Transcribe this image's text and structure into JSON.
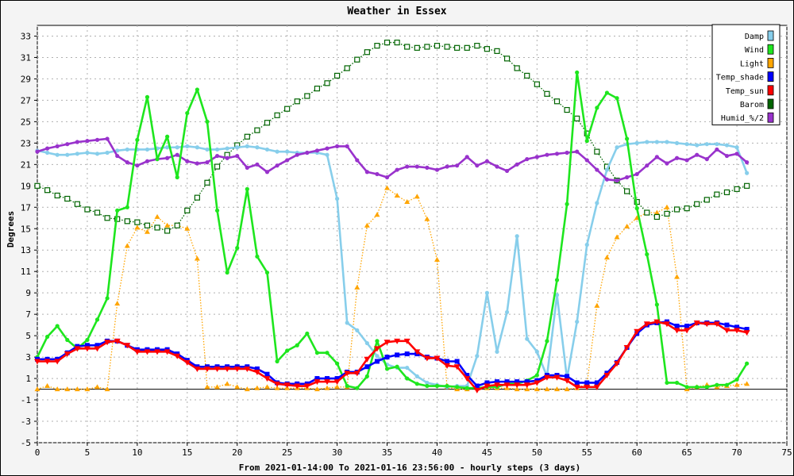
{
  "chart_data": {
    "type": "line",
    "title": "Weather in Essex",
    "xlabel": "From 2021-01-14:00 To 2021-01-16 23:56:00 - hourly steps (3 days)",
    "ylabel": "Degrees",
    "xlim": [
      0,
      75
    ],
    "ylim": [
      -5,
      34
    ],
    "xticks": [
      0,
      5,
      10,
      15,
      20,
      25,
      30,
      35,
      40,
      45,
      50,
      55,
      60,
      65,
      70,
      75
    ],
    "yticks": [
      -5,
      -3,
      -1,
      1,
      3,
      5,
      7,
      9,
      11,
      13,
      15,
      17,
      19,
      21,
      23,
      25,
      27,
      29,
      31,
      33
    ],
    "grid": true,
    "legend_position": "top-right",
    "series": [
      {
        "name": "Damp",
        "color": "#87ceeb",
        "marker": "dot",
        "line": "solid",
        "values": [
          22.3,
          22.1,
          21.9,
          21.9,
          22,
          22.1,
          22,
          22.1,
          22.3,
          22.4,
          22.4,
          22.4,
          22.5,
          22.6,
          22.6,
          22.7,
          22.6,
          22.4,
          22.4,
          22.5,
          22.6,
          22.7,
          22.6,
          22.4,
          22.2,
          22.2,
          22.1,
          22.1,
          22.1,
          21.9,
          17.8,
          6.2,
          5.5,
          4.3,
          3.1,
          2.3,
          2,
          2,
          1.2,
          0.6,
          0.4,
          0.2,
          0.3,
          0.3,
          3.1,
          9,
          3.5,
          7.2,
          14.3,
          4.7,
          3.5,
          1.2,
          8.8,
          1,
          6.3,
          13.5,
          17.4,
          20.5,
          22.6,
          22.9,
          23,
          23.1,
          23.1,
          23.1,
          23,
          22.9,
          22.8,
          22.9,
          22.9,
          22.8,
          22.6,
          20.2
        ]
      },
      {
        "name": "Wind",
        "color": "#1ee61e",
        "marker": "dot",
        "line": "solid",
        "values": [
          3,
          4.9,
          5.9,
          4.6,
          3.8,
          4.6,
          6.5,
          8.5,
          16.7,
          17,
          23.3,
          27.3,
          21.5,
          23.6,
          19.8,
          25.8,
          28,
          25,
          16.7,
          10.9,
          13.2,
          18.7,
          12.4,
          10.9,
          2.6,
          3.6,
          4.1,
          5.2,
          3.4,
          3.4,
          2.4,
          0.3,
          0.1,
          1.2,
          4.5,
          1.9,
          2.1,
          1,
          0.5,
          0.3,
          0.3,
          0.3,
          0.2,
          0.1,
          0.1,
          0.2,
          0.2,
          0.5,
          0.5,
          0.8,
          1.3,
          4.5,
          10.2,
          17.3,
          29.6,
          23.2,
          26.3,
          27.7,
          27.2,
          23.4,
          16.9,
          12.6,
          7.9,
          0.6,
          0.6,
          0.2,
          0.2,
          0.2,
          0.4,
          0.4,
          0.9,
          2.4
        ]
      },
      {
        "name": "Light",
        "color": "#ffa500",
        "marker": "triangle",
        "line": "dotted",
        "values": [
          0,
          0.3,
          0,
          0,
          0,
          0,
          0.2,
          0,
          8,
          13.4,
          15.1,
          14.7,
          16.1,
          15.3,
          15.3,
          15,
          12.2,
          0.2,
          0.2,
          0.5,
          0.2,
          0,
          0.1,
          0.2,
          0.1,
          0.1,
          0.1,
          0.1,
          0,
          0.1,
          0.2,
          0.2,
          9.5,
          15.3,
          16.3,
          18.8,
          18.1,
          17.5,
          18,
          15.9,
          12.1,
          0.2,
          0,
          0,
          0.1,
          0.1,
          0.1,
          0.1,
          0,
          0,
          0,
          0,
          0,
          0,
          0.1,
          0.5,
          7.8,
          12.3,
          14.2,
          15.2,
          16,
          16.5,
          16.5,
          17,
          10.5,
          0,
          0.2,
          0.4,
          0.2,
          0.3,
          0.4,
          0.5
        ]
      },
      {
        "name": "Temp_shade",
        "color": "#0000ff",
        "marker": "square",
        "line": "solid",
        "values": [
          2.8,
          2.8,
          2.8,
          3.4,
          4,
          4.1,
          4.1,
          4.5,
          4.5,
          4.1,
          3.7,
          3.7,
          3.7,
          3.7,
          3.3,
          2.7,
          2.1,
          2.1,
          2.1,
          2.1,
          2.1,
          2.1,
          1.9,
          1.4,
          0.6,
          0.5,
          0.5,
          0.5,
          1,
          1,
          1,
          1.6,
          1.6,
          2.1,
          2.6,
          3,
          3.2,
          3.3,
          3.3,
          3,
          2.9,
          2.6,
          2.6,
          1.3,
          0.3,
          0.6,
          0.7,
          0.7,
          0.7,
          0.7,
          0.8,
          1.3,
          1.3,
          1.2,
          0.6,
          0.6,
          0.6,
          1.5,
          2.5,
          3.9,
          5.2,
          6,
          6.2,
          6.3,
          5.9,
          5.9,
          6.2,
          6.2,
          6.2,
          6,
          5.8,
          5.6
        ]
      },
      {
        "name": "Temp_sun",
        "color": "#ff0000",
        "marker": "triangle-down",
        "line": "solid",
        "values": [
          2.6,
          2.6,
          2.6,
          3.3,
          3.8,
          3.8,
          3.8,
          4.4,
          4.5,
          4.1,
          3.5,
          3.5,
          3.5,
          3.5,
          3.1,
          2.5,
          1.9,
          1.9,
          1.9,
          1.9,
          1.9,
          1.9,
          1.6,
          1,
          0.5,
          0.4,
          0.3,
          0.3,
          0.7,
          0.7,
          0.7,
          1.5,
          1.5,
          2.8,
          3.8,
          4.4,
          4.5,
          4.5,
          3.5,
          2.9,
          2.9,
          2.2,
          2.1,
          1,
          -0.1,
          0.3,
          0.4,
          0.4,
          0.4,
          0.4,
          0.6,
          1.1,
          1.1,
          0.8,
          0.2,
          0.2,
          0.2,
          1.3,
          2.4,
          3.9,
          5.4,
          6.1,
          6.3,
          6.1,
          5.5,
          5.5,
          6.2,
          6.1,
          6.1,
          5.5,
          5.5,
          5.3
        ]
      },
      {
        "name": "Barom",
        "color": "#006400",
        "marker": "open-square",
        "line": "dotted",
        "values": [
          19,
          18.6,
          18.1,
          17.8,
          17.3,
          16.8,
          16.5,
          16,
          15.9,
          15.7,
          15.6,
          15.3,
          15.1,
          14.8,
          15.3,
          16.7,
          17.9,
          19.3,
          20.8,
          21.9,
          22.8,
          23.6,
          24.2,
          24.9,
          25.6,
          26.2,
          26.9,
          27.4,
          28.1,
          28.6,
          29.3,
          30,
          30.8,
          31.5,
          32.1,
          32.4,
          32.4,
          32,
          31.9,
          32,
          32.1,
          32,
          31.9,
          31.9,
          32.1,
          31.8,
          31.6,
          30.9,
          30,
          29.3,
          28.5,
          27.6,
          26.9,
          26.1,
          25.3,
          23.9,
          22.2,
          20.8,
          19.5,
          18.5,
          17.5,
          16.5,
          16.1,
          16.4,
          16.8,
          16.9,
          17.3,
          17.7,
          18.2,
          18.4,
          18.7,
          19
        ]
      },
      {
        "name": "Humid_%/2",
        "color": "#9932cc",
        "marker": "dot",
        "line": "solid",
        "values": [
          22.2,
          22.5,
          22.7,
          22.9,
          23.1,
          23.2,
          23.3,
          23.4,
          21.8,
          21.2,
          20.9,
          21.3,
          21.5,
          21.6,
          21.9,
          21.3,
          21.1,
          21.2,
          21.8,
          21.6,
          21.8,
          20.7,
          21,
          20.3,
          20.9,
          21.4,
          21.9,
          22.1,
          22.3,
          22.5,
          22.7,
          22.7,
          21.4,
          20.3,
          20.1,
          19.8,
          20.5,
          20.8,
          20.8,
          20.7,
          20.5,
          20.8,
          20.9,
          21.7,
          20.9,
          21.3,
          20.8,
          20.4,
          21,
          21.5,
          21.7,
          21.9,
          22,
          22.1,
          22.2,
          21.4,
          20.5,
          19.6,
          19.5,
          19.8,
          20.1,
          20.9,
          21.7,
          21.1,
          21.6,
          21.4,
          21.9,
          21.5,
          22.4,
          21.8,
          22,
          21.2
        ]
      }
    ]
  }
}
